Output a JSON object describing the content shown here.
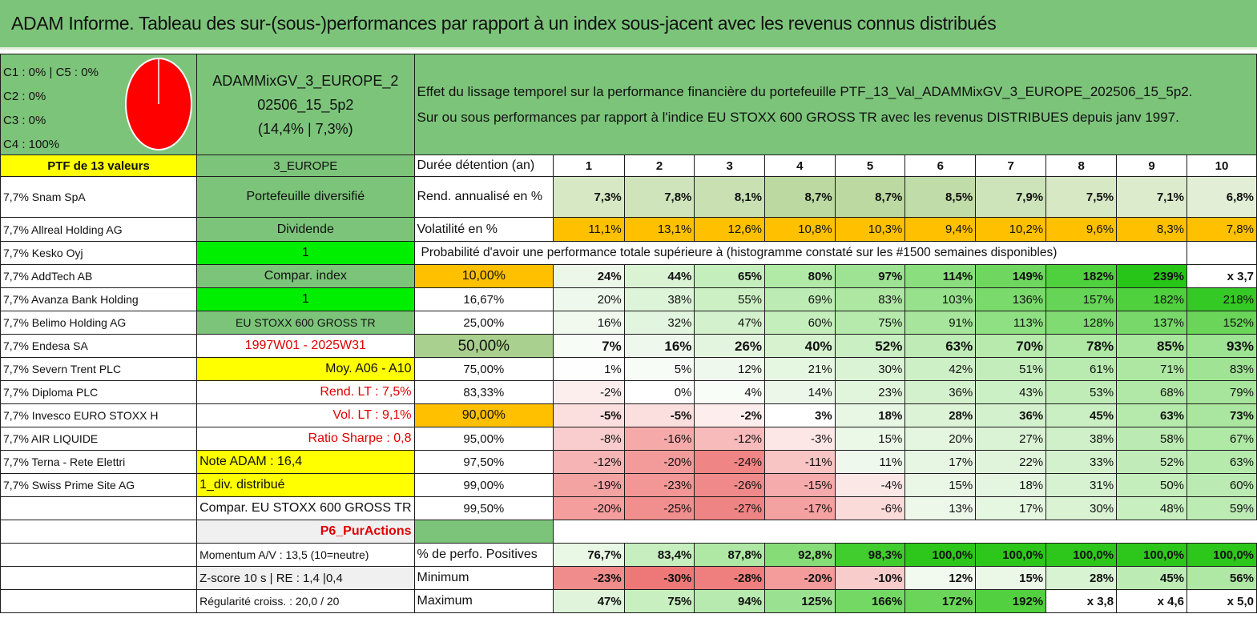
{
  "title": "ADAM Informe. Tableau des sur-(sous-)performances par rapport à un index sous-jacent avec les revenus connus distribués",
  "classes": [
    "C1 : 0% | C5 : 0%",
    "C2 : 0%",
    "C3 : 0%",
    "C4 : 100%"
  ],
  "pie": {
    "color": "#ff0000",
    "values": [
      0,
      0,
      0,
      100,
      0
    ]
  },
  "portfolio": {
    "name": "ADAMMixGV_3_EUROPE_202506_15_5p2",
    "name_line1": "ADAMMixGV_3_EUROPE_2",
    "name_line2": "02506_15_5p2",
    "perf": "(14,4% | 7,3%)"
  },
  "description": {
    "line1": "Effet du lissage temporel sur la performance financière du portefeuille PTF_13_Val_ADAMMixGV_3_EUROPE_202506_15_5p2.",
    "line2": "Sur ou sous performances par rapport à l'indice EU STOXX 600 GROSS TR avec les revenus DISTRIBUES depuis janv 1997."
  },
  "ptf_header": "PTF de 13 valeurs",
  "holdings": [
    "7,7% Snam SpA",
    "7,7% Allreal Holding AG",
    "7,7% Kesko Oyj",
    "7,7% AddTech AB",
    "7,7% Avanza Bank Holding",
    "7,7% Belimo Holding AG",
    "7,7% Endesa SA",
    "7,7% Severn Trent PLC",
    "7,7% Diploma PLC",
    "7,7% Invesco EURO STOXX H",
    "7,7% AIR LIQUIDE",
    "7,7% Terna - Rete Elettri",
    "7,7% Swiss Prime Site AG"
  ],
  "info": {
    "region": "3_EUROPE",
    "diversified": "Portefeuille diversifié",
    "dividend": "Dividende",
    "one_a": "1",
    "compar_index": "Compar. index",
    "one_b": "1",
    "index_name": "EU STOXX 600 GROSS TR",
    "period": "1997W01 - 2025W31",
    "moy": "Moy. A06 - A10",
    "rend_lt": "Rend. LT : 7,5%",
    "vol_lt": "Vol. LT : 9,1%",
    "sharpe": "Ratio Sharpe : 0,8",
    "note": "Note ADAM : 16,4",
    "div": "1_div. distribué",
    "compar_full": "Compar. EU STOXX 600 GROSS TR",
    "sheet_link": "P6_PurActions",
    "momentum": "Momentum A/V : 13,5 (10=neutre)",
    "zscore": "Z-score 10 s | RE : 1,4 |0,4",
    "regularite": "Régularité croiss. : 20,0 / 20"
  },
  "table": {
    "duration_label": "Durée détention (an)",
    "years": [
      "1",
      "2",
      "3",
      "4",
      "5",
      "6",
      "7",
      "8",
      "9",
      "10"
    ],
    "rend_label": "Rend. annualisé en %",
    "rend": [
      "7,3%",
      "7,8%",
      "8,1%",
      "8,7%",
      "8,7%",
      "8,5%",
      "7,9%",
      "7,5%",
      "7,1%",
      "6,8%"
    ],
    "vol_label": "Volatilité en %",
    "vol": [
      "11,1%",
      "13,1%",
      "12,6%",
      "10,8%",
      "10,3%",
      "9,4%",
      "10,2%",
      "9,6%",
      "8,3%",
      "7,8%"
    ],
    "prob_label": "Probabilité d'avoir une performance totale supérieure à (histogramme constaté sur les #1500 semaines disponibles)",
    "quantiles": [
      {
        "p": "10,00%",
        "v": [
          "24%",
          "44%",
          "65%",
          "80%",
          "97%",
          "114%",
          "149%",
          "182%",
          "239%",
          "x 3,7"
        ]
      },
      {
        "p": "16,67%",
        "v": [
          "20%",
          "38%",
          "55%",
          "69%",
          "83%",
          "103%",
          "136%",
          "157%",
          "182%",
          "218%"
        ]
      },
      {
        "p": "25,00%",
        "v": [
          "16%",
          "32%",
          "47%",
          "60%",
          "75%",
          "91%",
          "113%",
          "128%",
          "137%",
          "152%"
        ]
      },
      {
        "p": "50,00%",
        "v": [
          "7%",
          "16%",
          "26%",
          "40%",
          "52%",
          "63%",
          "70%",
          "78%",
          "85%",
          "93%"
        ]
      },
      {
        "p": "75,00%",
        "v": [
          "1%",
          "5%",
          "12%",
          "21%",
          "30%",
          "42%",
          "51%",
          "61%",
          "71%",
          "83%"
        ]
      },
      {
        "p": "83,33%",
        "v": [
          "-2%",
          "0%",
          "4%",
          "14%",
          "23%",
          "36%",
          "43%",
          "53%",
          "68%",
          "79%"
        ]
      },
      {
        "p": "90,00%",
        "v": [
          "-5%",
          "-5%",
          "-2%",
          "3%",
          "18%",
          "28%",
          "36%",
          "45%",
          "63%",
          "73%"
        ]
      },
      {
        "p": "95,00%",
        "v": [
          "-8%",
          "-16%",
          "-12%",
          "-3%",
          "15%",
          "20%",
          "27%",
          "38%",
          "58%",
          "67%"
        ]
      },
      {
        "p": "97,50%",
        "v": [
          "-12%",
          "-20%",
          "-24%",
          "-11%",
          "11%",
          "17%",
          "22%",
          "33%",
          "52%",
          "63%"
        ]
      },
      {
        "p": "99,00%",
        "v": [
          "-19%",
          "-23%",
          "-26%",
          "-15%",
          "-4%",
          "15%",
          "18%",
          "31%",
          "50%",
          "60%"
        ]
      },
      {
        "p": "99,50%",
        "v": [
          "-20%",
          "-25%",
          "-27%",
          "-17%",
          "-6%",
          "13%",
          "17%",
          "30%",
          "48%",
          "59%"
        ]
      }
    ],
    "pos_label": "% de perfo. Positives",
    "pos": [
      "76,7%",
      "83,4%",
      "87,8%",
      "92,8%",
      "98,3%",
      "100,0%",
      "100,0%",
      "100,0%",
      "100,0%",
      "100,0%"
    ],
    "min_label": "Minimum",
    "min": [
      "-23%",
      "-30%",
      "-28%",
      "-20%",
      "-10%",
      "12%",
      "15%",
      "28%",
      "45%",
      "56%"
    ],
    "max_label": "Maximum",
    "max": [
      "47%",
      "75%",
      "94%",
      "125%",
      "166%",
      "172%",
      "192%",
      "x 3,8",
      "x 4,6",
      "x 5,0"
    ]
  }
}
